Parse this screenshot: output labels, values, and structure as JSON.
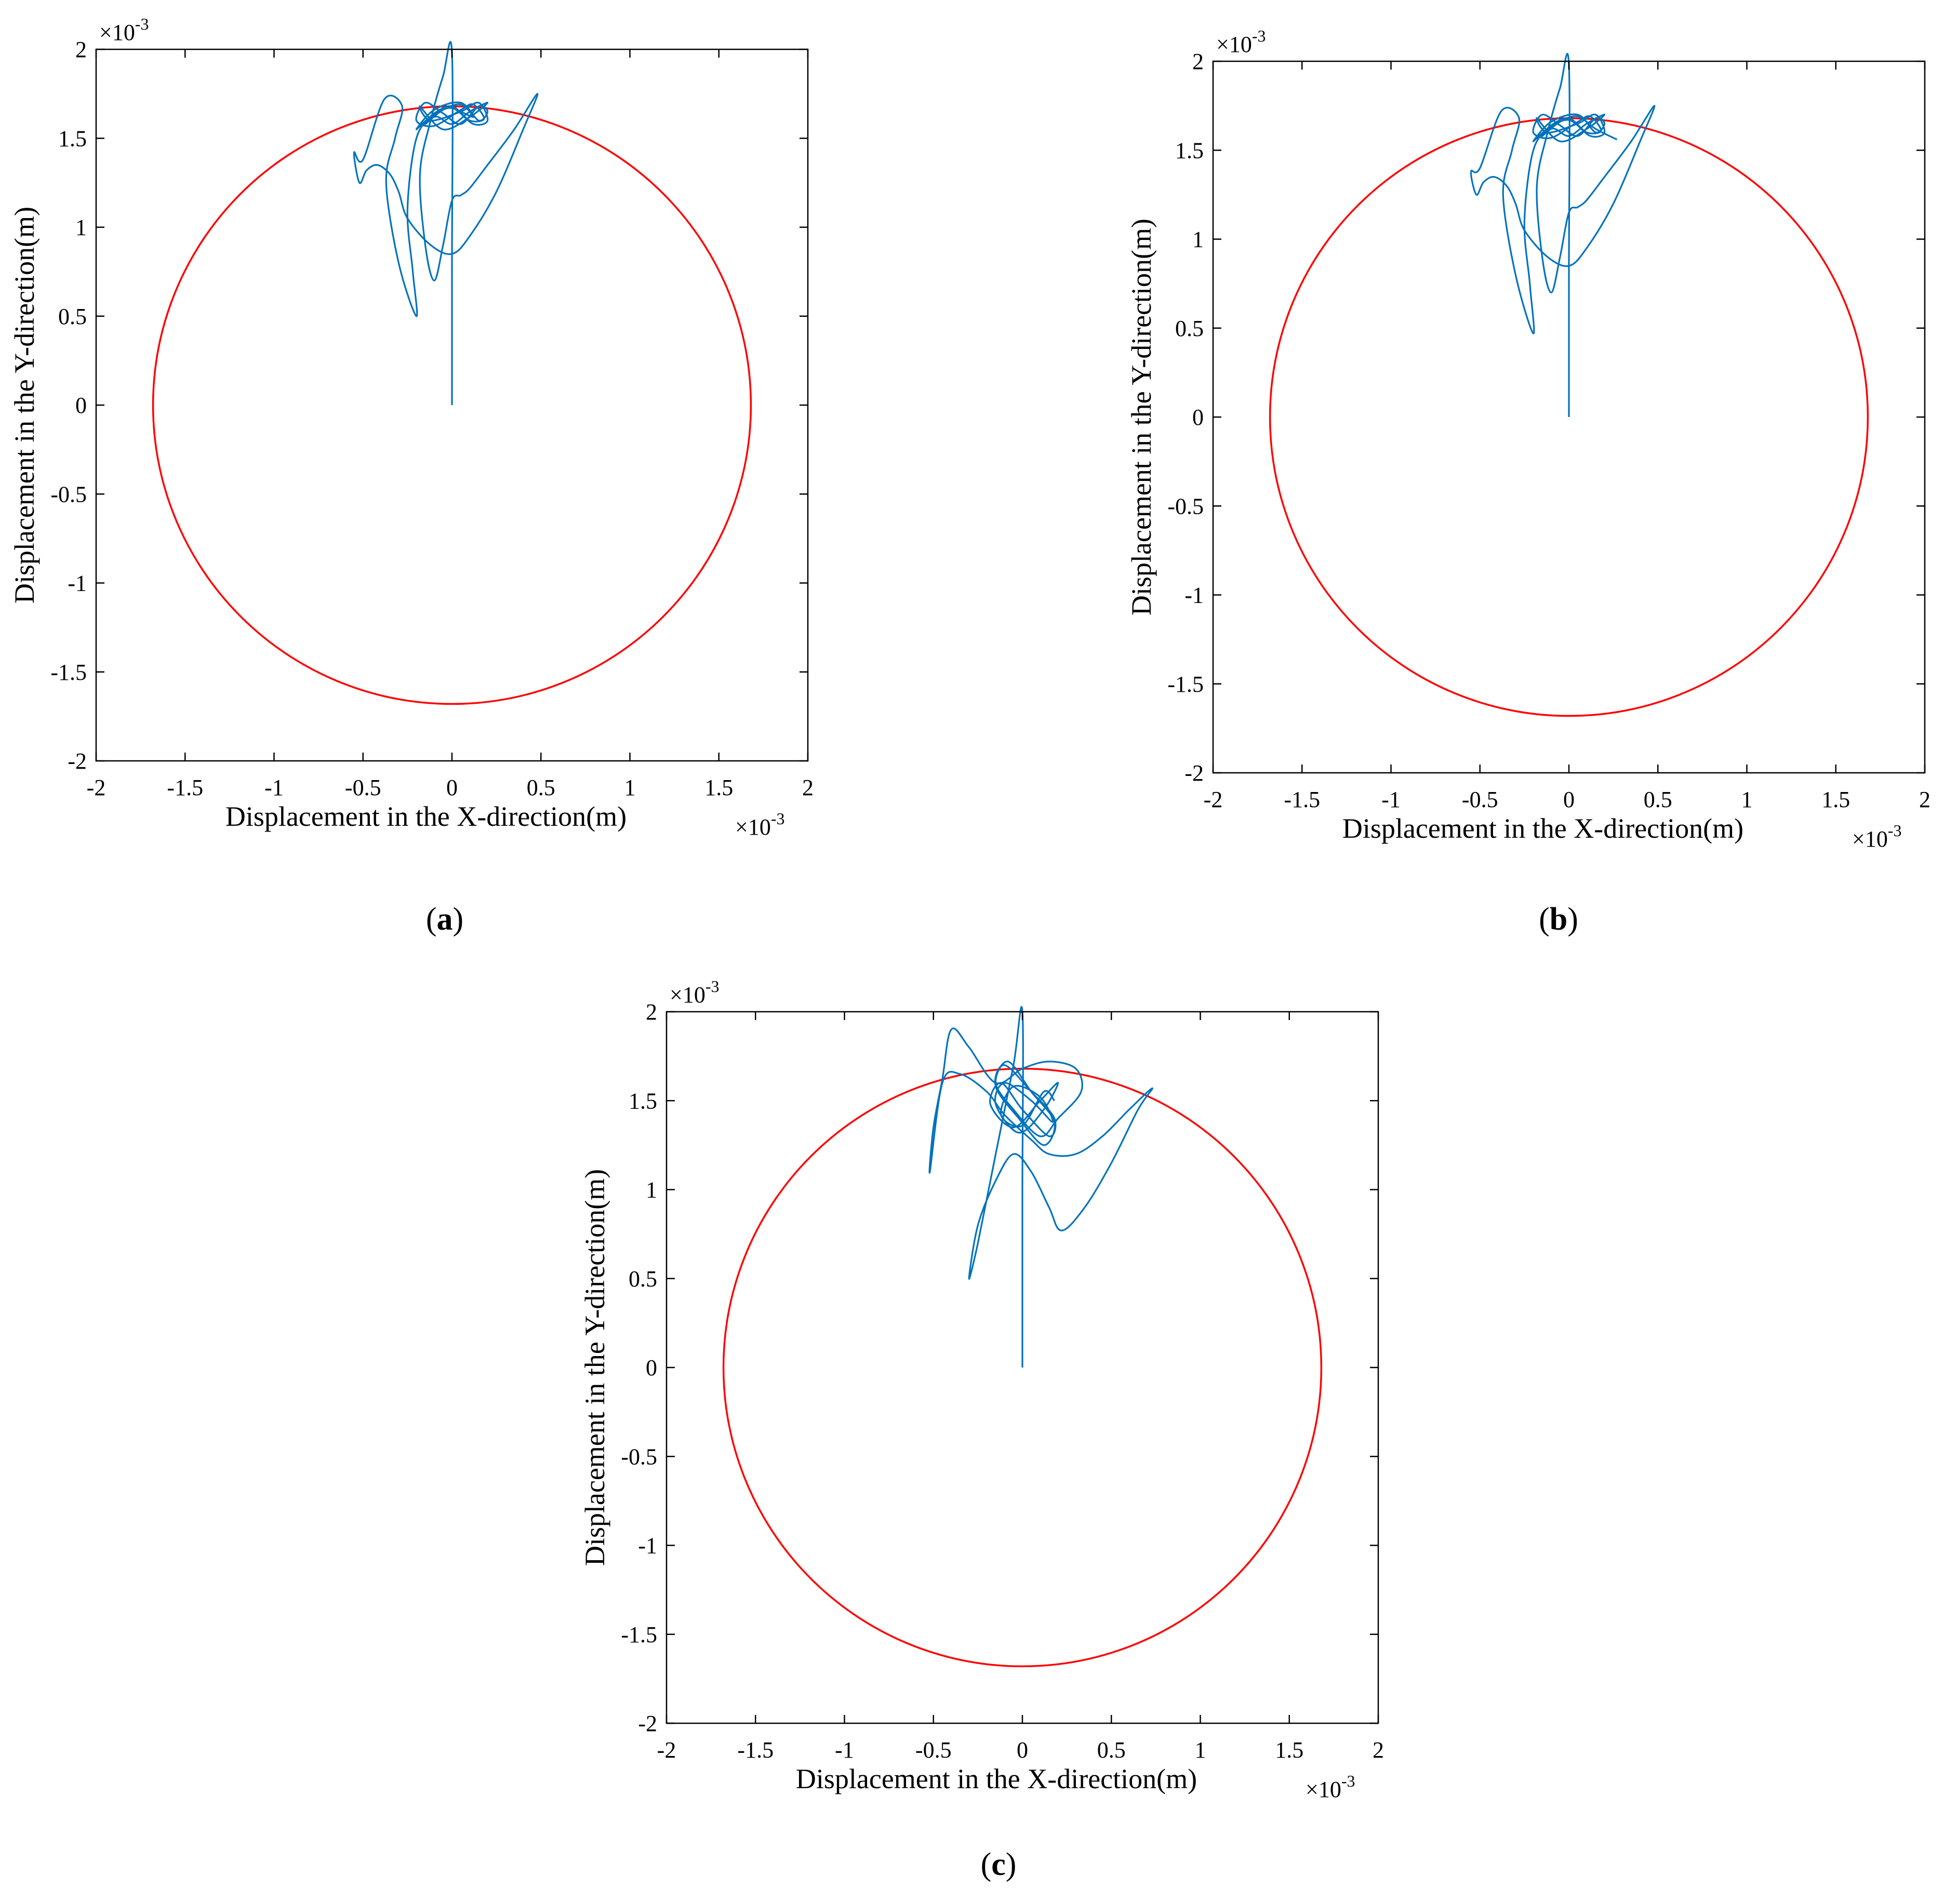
{
  "panels": [
    {
      "label": "(a)",
      "label_parts": [
        "(",
        "a",
        ")"
      ]
    },
    {
      "label": "(b)",
      "label_parts": [
        "(",
        "b",
        ")"
      ]
    },
    {
      "label": "(c)",
      "label_parts": [
        "(",
        "c",
        ")"
      ]
    }
  ],
  "chart_data": [
    {
      "type": "line",
      "panel": "a",
      "xlabel": "Displacement in the X-direction(m)",
      "ylabel": "Displacement in the Y-direction(m)",
      "x_exponent": "×10",
      "x_exponent_power": "-3",
      "y_exponent": "×10",
      "y_exponent_power": "-3",
      "xlim": [
        -2,
        2
      ],
      "ylim": [
        -2,
        2
      ],
      "xticks": [
        "-2",
        "-1.5",
        "-1",
        "-0.5",
        "0",
        "0.5",
        "1",
        "1.5",
        "2"
      ],
      "yticks": [
        "-2",
        "-1.5",
        "-1",
        "-0.5",
        "0",
        "0.5",
        "1",
        "1.5",
        "2"
      ],
      "grid": false,
      "series": [
        {
          "kind": "circle",
          "color": "#ff0000",
          "center": [
            0,
            0
          ],
          "radius": 1.68
        },
        {
          "kind": "orbit",
          "color": "#0072bd",
          "x": [
            0,
            0,
            0,
            -0.05,
            -0.12,
            -0.18,
            -0.15,
            -0.1,
            -0.05,
            0,
            0.05,
            0.1,
            0.2,
            0.35,
            0.48,
            0.4,
            0.25,
            0.1,
            0,
            -0.12,
            -0.25,
            -0.3,
            -0.35,
            -0.42,
            -0.48,
            -0.52,
            -0.55,
            -0.5,
            -0.38,
            -0.28,
            -0.32,
            -0.37,
            -0.3,
            -0.2,
            -0.22,
            -0.25,
            -0.2,
            -0.1,
            0,
            0.1,
            0.2,
            0.1,
            -0.05,
            -0.18,
            -0.12,
            0.05,
            0.15,
            0.2,
            0.12,
            0,
            -0.12,
            -0.2,
            -0.1,
            0.05,
            0.15,
            0.2,
            0.15,
            0.05,
            -0.05,
            -0.15,
            -0.2,
            -0.1,
            0.05,
            0.12,
            0.18,
            0.1,
            0,
            -0.1,
            -0.15,
            -0.05,
            0.05,
            0.12,
            0.05
          ],
          "y": [
            0,
            0.8,
            1.98,
            1.85,
            1.6,
            1.3,
            0.9,
            0.7,
            0.9,
            1.15,
            1.18,
            1.22,
            1.35,
            1.55,
            1.75,
            1.55,
            1.2,
            0.95,
            0.85,
            0.9,
            1.05,
            1.2,
            1.3,
            1.35,
            1.32,
            1.25,
            1.42,
            1.38,
            1.72,
            1.68,
            1.5,
            1.25,
            0.8,
            0.5,
            0.75,
            1.1,
            1.5,
            1.62,
            1.58,
            1.65,
            1.7,
            1.62,
            1.55,
            1.68,
            1.6,
            1.65,
            1.7,
            1.6,
            1.58,
            1.67,
            1.62,
            1.55,
            1.66,
            1.7,
            1.6,
            1.65,
            1.68,
            1.58,
            1.64,
            1.7,
            1.6,
            1.57,
            1.66,
            1.69,
            1.61,
            1.6,
            1.68,
            1.64,
            1.58,
            1.66,
            1.69,
            1.62,
            1.65
          ]
        }
      ]
    },
    {
      "type": "line",
      "panel": "b",
      "xlabel": "Displacement in the X-direction(m)",
      "ylabel": "Displacement in the Y-direction(m)",
      "x_exponent": "×10",
      "x_exponent_power": "-3",
      "y_exponent": "×10",
      "y_exponent_power": "-3",
      "xlim": [
        -2,
        2
      ],
      "ylim": [
        -2,
        2
      ],
      "xticks": [
        "-2",
        "-1.5",
        "-1",
        "-0.5",
        "0",
        "0.5",
        "1",
        "1.5",
        "2"
      ],
      "yticks": [
        "-2",
        "-1.5",
        "-1",
        "-0.5",
        "0",
        "0.5",
        "1",
        "1.5",
        "2"
      ],
      "grid": false,
      "series": [
        {
          "kind": "circle",
          "color": "#ff0000",
          "center": [
            0,
            0
          ],
          "radius": 1.68
        },
        {
          "kind": "orbit",
          "color": "#0072bd",
          "x": [
            0,
            0,
            0,
            -0.05,
            -0.12,
            -0.18,
            -0.15,
            -0.1,
            -0.05,
            0,
            0.05,
            0.1,
            0.2,
            0.35,
            0.48,
            0.4,
            0.25,
            0.1,
            0,
            -0.12,
            -0.25,
            -0.3,
            -0.35,
            -0.42,
            -0.48,
            -0.52,
            -0.55,
            -0.5,
            -0.38,
            -0.28,
            -0.32,
            -0.37,
            -0.3,
            -0.2,
            -0.22,
            -0.25,
            -0.2,
            -0.1,
            0,
            0.1,
            0.2,
            0.1,
            -0.05,
            -0.18,
            -0.12,
            0.05,
            0.15,
            0.2,
            0.12,
            0,
            -0.12,
            -0.2,
            -0.1,
            0.05,
            0.15,
            0.2,
            0.15,
            0.05,
            -0.05,
            -0.15,
            -0.2,
            -0.1,
            0.05,
            0.12,
            0.18,
            0.1,
            0,
            -0.1,
            -0.15,
            -0.05,
            0.05,
            0.15,
            0.27
          ],
          "y": [
            0,
            0.8,
            1.98,
            1.85,
            1.6,
            1.3,
            0.9,
            0.7,
            0.9,
            1.15,
            1.18,
            1.22,
            1.35,
            1.55,
            1.75,
            1.55,
            1.2,
            0.95,
            0.85,
            0.9,
            1.05,
            1.2,
            1.3,
            1.35,
            1.32,
            1.25,
            1.38,
            1.4,
            1.72,
            1.68,
            1.5,
            1.25,
            0.8,
            0.47,
            0.75,
            1.1,
            1.5,
            1.62,
            1.58,
            1.65,
            1.7,
            1.62,
            1.55,
            1.68,
            1.6,
            1.65,
            1.7,
            1.6,
            1.58,
            1.67,
            1.62,
            1.55,
            1.66,
            1.7,
            1.6,
            1.65,
            1.68,
            1.58,
            1.64,
            1.7,
            1.6,
            1.57,
            1.66,
            1.69,
            1.61,
            1.6,
            1.68,
            1.64,
            1.58,
            1.66,
            1.69,
            1.62,
            1.56
          ]
        }
      ]
    },
    {
      "type": "line",
      "panel": "c",
      "xlabel": "Displacement in the X-direction(m)",
      "ylabel": "Displacement in the Y-direction(m)",
      "x_exponent": "×10",
      "x_exponent_power": "-3",
      "y_exponent": "×10",
      "y_exponent_power": "-3",
      "xlim": [
        -2,
        2
      ],
      "ylim": [
        -2,
        2
      ],
      "xticks": [
        "-2",
        "-1.5",
        "-1",
        "-0.5",
        "0",
        "0.5",
        "1",
        "1.5",
        "2"
      ],
      "yticks": [
        "-2",
        "-1.5",
        "-1",
        "-0.5",
        "0",
        "0.5",
        "1",
        "1.5",
        "2"
      ],
      "grid": false,
      "series": [
        {
          "kind": "circle",
          "color": "#ff0000",
          "center": [
            0,
            0
          ],
          "radius": 1.68
        },
        {
          "kind": "orbit",
          "color": "#0072bd",
          "x": [
            0,
            0,
            0,
            -0.05,
            -0.15,
            -0.25,
            -0.3,
            -0.25,
            -0.15,
            -0.05,
            0.05,
            0.15,
            0.22,
            0.35,
            0.5,
            0.65,
            0.73,
            0.6,
            0.45,
            0.3,
            0.15,
            0.05,
            -0.1,
            -0.2,
            -0.35,
            -0.45,
            -0.52,
            -0.5,
            -0.45,
            -0.4,
            -0.3,
            -0.15,
            0,
            0.15,
            0.3,
            0.33,
            0.2,
            0.1,
            -0.05,
            -0.15,
            -0.08,
            0.05,
            0.18,
            0.12,
            -0.02,
            -0.15,
            -0.1,
            0.05,
            0.18,
            0.15,
            0,
            -0.12,
            -0.18,
            -0.05,
            0.1,
            0.2,
            0.12,
            -0.02,
            -0.15,
            -0.1,
            0.05,
            0.17,
            0.1,
            -0.05,
            -0.12,
            0,
            0.12,
            0.18
          ],
          "y": [
            0,
            1.0,
            2.0,
            1.7,
            1.2,
            0.7,
            0.5,
            0.8,
            1.05,
            1.2,
            1.1,
            0.9,
            0.77,
            0.9,
            1.15,
            1.45,
            1.57,
            1.45,
            1.3,
            1.2,
            1.2,
            1.28,
            1.42,
            1.55,
            1.65,
            1.6,
            1.1,
            1.35,
            1.62,
            1.9,
            1.8,
            1.6,
            1.68,
            1.72,
            1.68,
            1.55,
            1.4,
            1.3,
            1.45,
            1.6,
            1.72,
            1.55,
            1.38,
            1.25,
            1.4,
            1.58,
            1.7,
            1.55,
            1.4,
            1.3,
            1.45,
            1.6,
            1.48,
            1.35,
            1.5,
            1.6,
            1.45,
            1.32,
            1.48,
            1.6,
            1.5,
            1.38,
            1.52,
            1.58,
            1.42,
            1.36,
            1.55,
            1.5
          ]
        }
      ]
    }
  ]
}
